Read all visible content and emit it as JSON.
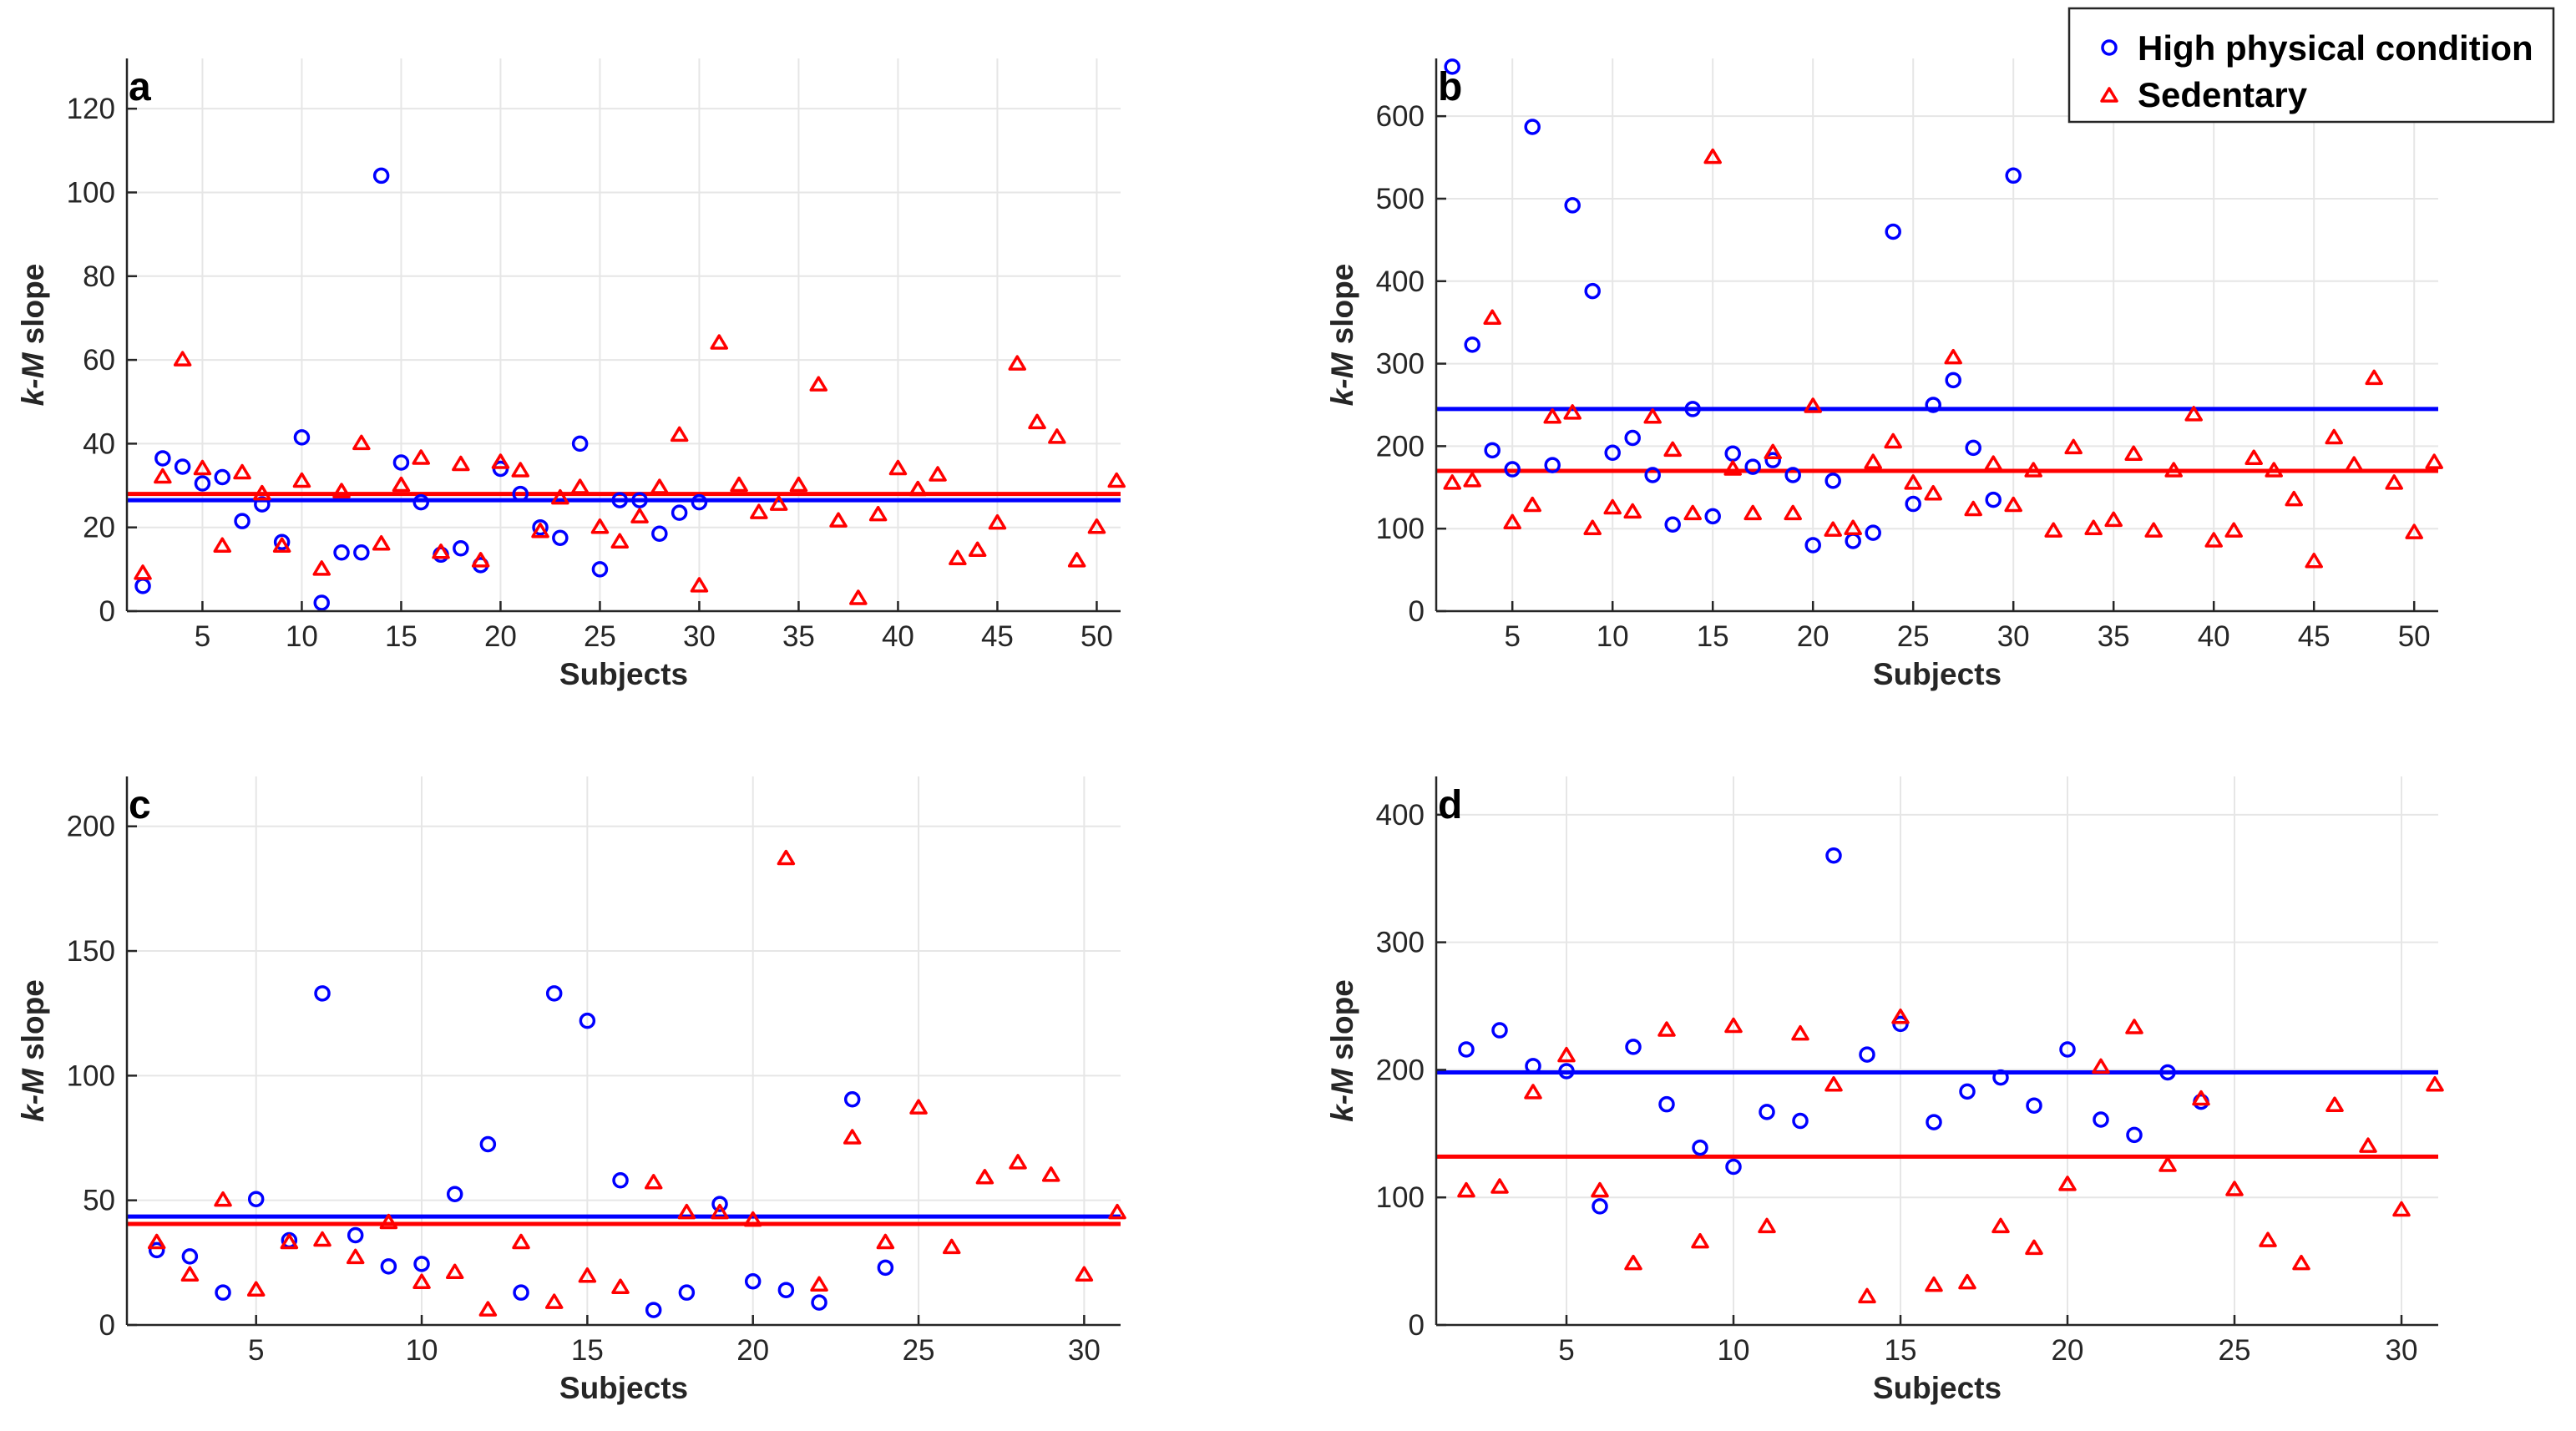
{
  "legend": {
    "entries": [
      {
        "label": "High physical condition",
        "color": "#0000ff",
        "marker": "circle"
      },
      {
        "label": "Sedentary",
        "color": "#ff0000",
        "marker": "triangle"
      }
    ]
  },
  "chart_data": [
    {
      "type": "scatter",
      "panel_label": "a",
      "xlabel": "Subjects",
      "ylabel_italic": "k-M",
      "ylabel_rest": " slope",
      "xlim": [
        1.2,
        51.2
      ],
      "ylim": [
        0,
        132
      ],
      "xticks": [
        5,
        10,
        15,
        20,
        25,
        30,
        35,
        40,
        45,
        50
      ],
      "yticks": [
        0,
        20,
        40,
        60,
        80,
        100,
        120
      ],
      "grid": true,
      "series": [
        {
          "name": "High physical condition",
          "color": "#0000ff",
          "marker": "circle",
          "mean": 26.5,
          "x": [
            2,
            3,
            4,
            5,
            6,
            7,
            8,
            9,
            10,
            11,
            12,
            13,
            14,
            15,
            16,
            17,
            18,
            19,
            20,
            21,
            22,
            23,
            24,
            25,
            26,
            27,
            28,
            29,
            30
          ],
          "y": [
            6,
            36.5,
            34.5,
            30.5,
            32,
            21.5,
            25.5,
            16.5,
            41.5,
            2,
            14,
            14,
            104,
            35.5,
            26,
            13.5,
            15,
            11,
            34,
            28,
            20,
            17.5,
            40,
            10,
            26.5,
            26.5,
            18.5,
            23.5,
            26
          ]
        },
        {
          "name": "Sedentary",
          "color": "#ff0000",
          "marker": "triangle",
          "mean": 28.0,
          "x": [
            2,
            3,
            4,
            5,
            6,
            7,
            8,
            9,
            10,
            11,
            12,
            13,
            14,
            15,
            16,
            17,
            18,
            19,
            20,
            21,
            22,
            23,
            24,
            25,
            26,
            27,
            28,
            29,
            30,
            31,
            32,
            33,
            34,
            35,
            36,
            37,
            38,
            39,
            40,
            41,
            42,
            43,
            44,
            45,
            46,
            47,
            48,
            49,
            50,
            51
          ],
          "y": [
            9,
            32,
            60,
            34,
            15.5,
            33,
            28,
            15.5,
            31,
            10,
            28.5,
            40,
            16,
            30,
            36.5,
            14,
            35,
            12,
            35.5,
            33.5,
            19,
            27,
            29.5,
            20,
            16.5,
            22.5,
            29.5,
            42,
            6,
            64,
            30,
            23.5,
            25.5,
            30,
            54,
            21.5,
            3,
            23,
            34,
            29,
            32.5,
            12.5,
            14.5,
            21,
            59,
            45,
            41.5,
            12,
            20,
            31
          ]
        }
      ]
    },
    {
      "type": "scatter",
      "panel_label": "b",
      "xlabel": "Subjects",
      "ylabel_italic": "k-M",
      "ylabel_rest": " slope",
      "xlim": [
        1.2,
        51.2
      ],
      "ylim": [
        0,
        670
      ],
      "xticks": [
        5,
        10,
        15,
        20,
        25,
        30,
        35,
        40,
        45,
        50
      ],
      "yticks": [
        0,
        100,
        200,
        300,
        400,
        500,
        600
      ],
      "grid": true,
      "series": [
        {
          "name": "High physical condition",
          "color": "#0000ff",
          "marker": "circle",
          "mean": 245,
          "x": [
            2,
            3,
            4,
            5,
            6,
            7,
            8,
            9,
            10,
            11,
            12,
            13,
            14,
            15,
            16,
            17,
            18,
            19,
            20,
            21,
            22,
            23,
            24,
            25,
            26,
            27,
            28,
            29,
            30
          ],
          "y": [
            660,
            323,
            195,
            172,
            587,
            177,
            492,
            388,
            192,
            210,
            165,
            105,
            245,
            115,
            191,
            175,
            183,
            165,
            80,
            158,
            85,
            95,
            460,
            130,
            250,
            280,
            198,
            135,
            528
          ]
        },
        {
          "name": "Sedentary",
          "color": "#ff0000",
          "marker": "triangle",
          "mean": 170,
          "x": [
            2,
            3,
            4,
            5,
            6,
            7,
            8,
            9,
            10,
            11,
            12,
            13,
            14,
            15,
            16,
            17,
            18,
            19,
            20,
            21,
            22,
            23,
            24,
            25,
            26,
            27,
            28,
            29,
            30,
            31,
            32,
            33,
            34,
            35,
            36,
            37,
            38,
            39,
            40,
            41,
            42,
            43,
            44,
            45,
            46,
            47,
            48,
            49,
            50,
            51
          ],
          "y": [
            155,
            158,
            355,
            107,
            128,
            235,
            240,
            100,
            125,
            120,
            235,
            195,
            118,
            550,
            172,
            118,
            192,
            118,
            248,
            98,
            100,
            180,
            205,
            155,
            142,
            307,
            123,
            178,
            128,
            170,
            97,
            198,
            100,
            110,
            190,
            97,
            170,
            238,
            85,
            97,
            185,
            170,
            135,
            60,
            210,
            177,
            282,
            155,
            95,
            180
          ]
        }
      ]
    },
    {
      "type": "scatter",
      "panel_label": "c",
      "xlabel": "Subjects",
      "ylabel_italic": "k-M",
      "ylabel_rest": " slope",
      "xlim": [
        1.1,
        31.1
      ],
      "ylim": [
        0,
        220
      ],
      "xticks": [
        5,
        10,
        15,
        20,
        25,
        30
      ],
      "yticks": [
        0,
        50,
        100,
        150,
        200
      ],
      "grid": true,
      "series": [
        {
          "name": "High physical condition",
          "color": "#0000ff",
          "marker": "circle",
          "mean": 43.5,
          "x": [
            2,
            3,
            4,
            5,
            6,
            7,
            8,
            9,
            10,
            11,
            12,
            13,
            14,
            15,
            16,
            17,
            18,
            19,
            20,
            21,
            22,
            23,
            24
          ],
          "y": [
            30,
            27.5,
            13,
            50.5,
            34,
            133,
            36,
            23.5,
            24.5,
            52.5,
            72.5,
            13,
            133,
            122,
            58,
            6,
            13,
            48.5,
            17.5,
            14,
            9,
            90.5,
            23
          ]
        },
        {
          "name": "Sedentary",
          "color": "#ff0000",
          "marker": "triangle",
          "mean": 40.5,
          "x": [
            2,
            3,
            4,
            5,
            6,
            7,
            8,
            9,
            10,
            11,
            12,
            13,
            14,
            15,
            16,
            17,
            18,
            19,
            20,
            21,
            22,
            23,
            24,
            25,
            26,
            27,
            28,
            29,
            30,
            31
          ],
          "y": [
            33,
            20,
            50,
            14,
            33,
            34,
            27,
            41,
            17,
            21,
            6,
            33,
            9,
            19.5,
            15,
            57,
            45,
            45,
            42,
            187,
            16,
            75,
            33,
            87,
            31,
            59,
            65,
            60,
            20,
            45
          ]
        }
      ]
    },
    {
      "type": "scatter",
      "panel_label": "d",
      "xlabel": "Subjects",
      "ylabel_italic": "k-M",
      "ylabel_rest": " slope",
      "xlim": [
        1.1,
        31.1
      ],
      "ylim": [
        0,
        430
      ],
      "xticks": [
        5,
        10,
        15,
        20,
        25,
        30
      ],
      "yticks": [
        0,
        100,
        200,
        300,
        400
      ],
      "grid": true,
      "series": [
        {
          "name": "High physical condition",
          "color": "#0000ff",
          "marker": "circle",
          "mean": 198,
          "x": [
            2,
            3,
            4,
            5,
            6,
            7,
            8,
            9,
            10,
            11,
            12,
            13,
            14,
            15,
            16,
            17,
            18,
            19,
            20,
            21,
            22,
            23,
            24
          ],
          "y": [
            216,
            231,
            203,
            199,
            93,
            218,
            173,
            139,
            124,
            167,
            160,
            368,
            212,
            236,
            159,
            183,
            194,
            172,
            216,
            161,
            149,
            198,
            175
          ]
        },
        {
          "name": "Sedentary",
          "color": "#ff0000",
          "marker": "triangle",
          "mean": 132,
          "x": [
            2,
            3,
            4,
            5,
            6,
            7,
            8,
            9,
            10,
            11,
            12,
            13,
            14,
            15,
            16,
            17,
            18,
            19,
            20,
            21,
            22,
            23,
            24,
            25,
            26,
            27,
            28,
            29,
            30,
            31
          ],
          "y": [
            105,
            108,
            182,
            211,
            105,
            48,
            231,
            65,
            234,
            77,
            228,
            188,
            22,
            241,
            31,
            33,
            77,
            60,
            110,
            202,
            233,
            125,
            177,
            106,
            66,
            48,
            172,
            140,
            90,
            188
          ]
        }
      ]
    }
  ]
}
